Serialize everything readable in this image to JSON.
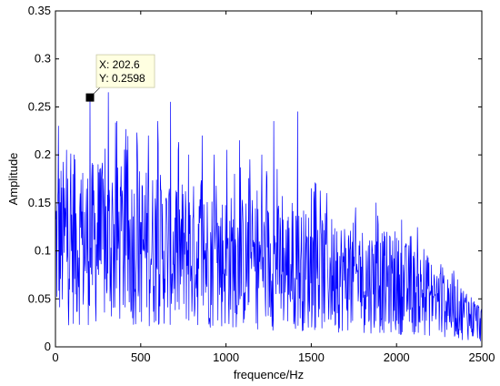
{
  "chart_data": {
    "type": "line",
    "title": "",
    "xlabel": "frequence/Hz",
    "ylabel": "Amplitude",
    "xlim": [
      0,
      2500
    ],
    "ylim": [
      0,
      0.35
    ],
    "xticks": [
      0,
      500,
      1000,
      1500,
      2000,
      2500
    ],
    "yticks": [
      0,
      0.05,
      0.1,
      0.15,
      0.2,
      0.25,
      0.3,
      0.35
    ],
    "xtick_labels": [
      "0",
      "500",
      "1000",
      "1500",
      "2000",
      "2500"
    ],
    "ytick_labels": [
      "0",
      "0.05",
      "0.1",
      "0.15",
      "0.2",
      "0.25",
      "0.3",
      "0.35"
    ],
    "grid": false,
    "series": [
      {
        "color": "#0000ff",
        "x_start": 0,
        "x_step": 2.5,
        "trend": {
          "x": [
            0,
            500,
            1000,
            1500,
            2000,
            2300,
            2500
          ],
          "y": [
            0.11,
            0.105,
            0.09,
            0.08,
            0.065,
            0.045,
            0.025
          ]
        },
        "peaks": [
          {
            "x": 18,
            "y": 0.23
          },
          {
            "x": 65,
            "y": 0.205
          },
          {
            "x": 110,
            "y": 0.2
          },
          {
            "x": 202.6,
            "y": 0.2598
          },
          {
            "x": 250,
            "y": 0.19
          },
          {
            "x": 310,
            "y": 0.265
          },
          {
            "x": 360,
            "y": 0.235
          },
          {
            "x": 420,
            "y": 0.205
          },
          {
            "x": 480,
            "y": 0.21
          },
          {
            "x": 545,
            "y": 0.22
          },
          {
            "x": 600,
            "y": 0.235
          },
          {
            "x": 675,
            "y": 0.255
          },
          {
            "x": 720,
            "y": 0.205
          },
          {
            "x": 780,
            "y": 0.2
          },
          {
            "x": 860,
            "y": 0.22
          },
          {
            "x": 930,
            "y": 0.2
          },
          {
            "x": 1005,
            "y": 0.205
          },
          {
            "x": 1080,
            "y": 0.215
          },
          {
            "x": 1140,
            "y": 0.195
          },
          {
            "x": 1210,
            "y": 0.2
          },
          {
            "x": 1280,
            "y": 0.235
          },
          {
            "x": 1300,
            "y": 0.185
          },
          {
            "x": 1420,
            "y": 0.245
          },
          {
            "x": 1500,
            "y": 0.165
          },
          {
            "x": 1590,
            "y": 0.16
          },
          {
            "x": 1650,
            "y": 0.12
          },
          {
            "x": 1760,
            "y": 0.145
          },
          {
            "x": 1880,
            "y": 0.15
          },
          {
            "x": 1990,
            "y": 0.12
          },
          {
            "x": 2080,
            "y": 0.115
          },
          {
            "x": 2180,
            "y": 0.095
          },
          {
            "x": 2300,
            "y": 0.07
          },
          {
            "x": 2410,
            "y": 0.055
          }
        ]
      }
    ],
    "annotation": {
      "x": 202.6,
      "y": 0.2598,
      "label_x": "X: 202.6",
      "label_y": "Y: 0.2598"
    }
  }
}
